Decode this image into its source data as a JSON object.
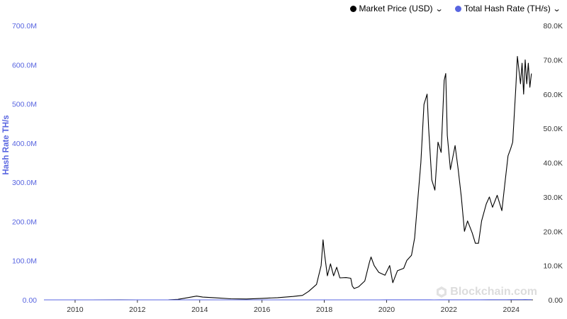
{
  "legend": {
    "price_label": "Market Price (USD)",
    "hash_label": "Total Hash Rate (TH/s)"
  },
  "watermark": "Blockchain.com",
  "colors": {
    "price": "#000000",
    "hash": "#5865e0",
    "left_axis_text": "#5865e0",
    "right_axis_text": "#333333",
    "baseline": "#333333"
  },
  "icons": {
    "legend_toggle": "chevron-down-icon",
    "brand": "blockchain-logo-icon"
  },
  "chart_data": {
    "type": "line",
    "title": "",
    "xlabel": "",
    "ylabel_left": "Hash Rate TH/s",
    "ylabel_right": "",
    "xlim": [
      2009.0,
      2024.7
    ],
    "ylim_left": [
      0,
      700000000
    ],
    "ylim_right": [
      0,
      80000
    ],
    "x_ticks": [
      2010,
      2012,
      2014,
      2016,
      2018,
      2020,
      2022,
      2024
    ],
    "x_tick_labels": [
      "2010",
      "2012",
      "2014",
      "2016",
      "2018",
      "2020",
      "2022",
      "2024"
    ],
    "left_ticks": [
      0,
      100000000,
      200000000,
      300000000,
      400000000,
      500000000,
      600000000,
      700000000
    ],
    "left_tick_labels": [
      "0.00",
      "100.0M",
      "200.0M",
      "300.0M",
      "400.0M",
      "500.0M",
      "600.0M",
      "700.0M"
    ],
    "right_ticks": [
      0,
      10000,
      20000,
      30000,
      40000,
      50000,
      60000,
      70000,
      80000
    ],
    "right_tick_labels": [
      "0.00",
      "10.0K",
      "20.0K",
      "30.0K",
      "40.0K",
      "50.0K",
      "60.0K",
      "70.0K",
      "80.0K"
    ],
    "grid": false,
    "legend_position": "top-right",
    "series": [
      {
        "name": "Market Price (USD)",
        "axis": "right",
        "points": [
          [
            2009.0,
            0
          ],
          [
            2010.5,
            0.1
          ],
          [
            2011.45,
            30
          ],
          [
            2012.0,
            5
          ],
          [
            2013.0,
            13
          ],
          [
            2013.3,
            150
          ],
          [
            2013.9,
            1100
          ],
          [
            2014.1,
            800
          ],
          [
            2014.5,
            600
          ],
          [
            2015.0,
            300
          ],
          [
            2015.5,
            250
          ],
          [
            2016.0,
            430
          ],
          [
            2016.5,
            650
          ],
          [
            2017.0,
            1000
          ],
          [
            2017.3,
            1300
          ],
          [
            2017.5,
            2500
          ],
          [
            2017.75,
            4500
          ],
          [
            2017.9,
            10000
          ],
          [
            2017.96,
            17500
          ],
          [
            2018.0,
            14000
          ],
          [
            2018.1,
            7000
          ],
          [
            2018.2,
            10500
          ],
          [
            2018.3,
            7000
          ],
          [
            2018.4,
            9500
          ],
          [
            2018.5,
            6400
          ],
          [
            2018.7,
            6500
          ],
          [
            2018.85,
            6300
          ],
          [
            2018.9,
            4000
          ],
          [
            2018.96,
            3300
          ],
          [
            2019.1,
            3800
          ],
          [
            2019.3,
            5500
          ],
          [
            2019.45,
            11000
          ],
          [
            2019.5,
            12500
          ],
          [
            2019.6,
            10000
          ],
          [
            2019.75,
            8000
          ],
          [
            2019.95,
            7200
          ],
          [
            2020.1,
            10000
          ],
          [
            2020.2,
            5000
          ],
          [
            2020.35,
            8500
          ],
          [
            2020.55,
            9200
          ],
          [
            2020.65,
            11500
          ],
          [
            2020.8,
            13000
          ],
          [
            2020.9,
            18000
          ],
          [
            2021.0,
            29000
          ],
          [
            2021.1,
            40000
          ],
          [
            2021.2,
            57000
          ],
          [
            2021.3,
            60000
          ],
          [
            2021.35,
            50000
          ],
          [
            2021.45,
            35000
          ],
          [
            2021.55,
            32000
          ],
          [
            2021.65,
            46000
          ],
          [
            2021.75,
            43000
          ],
          [
            2021.85,
            64000
          ],
          [
            2021.9,
            66000
          ],
          [
            2021.95,
            48000
          ],
          [
            2022.05,
            38000
          ],
          [
            2022.2,
            45000
          ],
          [
            2022.3,
            38000
          ],
          [
            2022.4,
            30000
          ],
          [
            2022.5,
            20000
          ],
          [
            2022.6,
            23000
          ],
          [
            2022.75,
            19500
          ],
          [
            2022.85,
            16500
          ],
          [
            2022.95,
            16500
          ],
          [
            2023.05,
            23000
          ],
          [
            2023.2,
            28000
          ],
          [
            2023.3,
            30000
          ],
          [
            2023.4,
            27000
          ],
          [
            2023.55,
            30500
          ],
          [
            2023.7,
            26000
          ],
          [
            2023.8,
            34000
          ],
          [
            2023.9,
            42000
          ],
          [
            2023.98,
            44000
          ],
          [
            2024.05,
            46000
          ],
          [
            2024.15,
            62000
          ],
          [
            2024.2,
            71000
          ],
          [
            2024.3,
            63000
          ],
          [
            2024.35,
            69000
          ],
          [
            2024.4,
            60000
          ],
          [
            2024.45,
            70000
          ],
          [
            2024.5,
            63000
          ],
          [
            2024.55,
            69000
          ],
          [
            2024.6,
            62000
          ],
          [
            2024.65,
            66000
          ]
        ]
      },
      {
        "name": "Total Hash Rate (TH/s)",
        "axis": "left",
        "points": [
          [
            2009.0,
            0
          ],
          [
            2012.0,
            0.01
          ],
          [
            2013.0,
            0.02
          ],
          [
            2013.5,
            0.2
          ],
          [
            2013.9,
            5
          ],
          [
            2014.5,
            150
          ],
          [
            2015.0,
            300
          ],
          [
            2015.5,
            400
          ],
          [
            2016.0,
            800
          ],
          [
            2016.5,
            1500
          ],
          [
            2017.0,
            2800
          ],
          [
            2017.5,
            6000
          ],
          [
            2017.9,
            14000
          ],
          [
            2018.3,
            30000
          ],
          [
            2018.7,
            50000
          ],
          [
            2018.96,
            40000
          ],
          [
            2019.2,
            45000
          ],
          [
            2019.5,
            70000
          ],
          [
            2019.75,
            90000
          ],
          [
            2020.0,
            100000
          ],
          [
            2020.3,
            110000
          ],
          [
            2020.55,
            120000
          ],
          [
            2020.8,
            140000
          ],
          [
            2021.0,
            150000
          ],
          [
            2021.3,
            170000
          ],
          [
            2021.4,
            140000
          ],
          [
            2021.52,
            90000
          ],
          [
            2021.7,
            130000
          ],
          [
            2021.95,
            175000
          ],
          [
            2022.2,
            200000
          ],
          [
            2022.5,
            220000
          ],
          [
            2022.8,
            245000
          ],
          [
            2023.0,
            270000
          ],
          [
            2023.3,
            320000
          ],
          [
            2023.5,
            370000
          ],
          [
            2023.7,
            400000
          ],
          [
            2023.85,
            450000
          ],
          [
            2024.0,
            500000
          ],
          [
            2024.2,
            560000
          ],
          [
            2024.35,
            620000
          ],
          [
            2024.45,
            650000
          ],
          [
            2024.55,
            630000
          ],
          [
            2024.6,
            600000
          ],
          [
            2024.65,
            580000
          ]
        ]
      }
    ]
  }
}
